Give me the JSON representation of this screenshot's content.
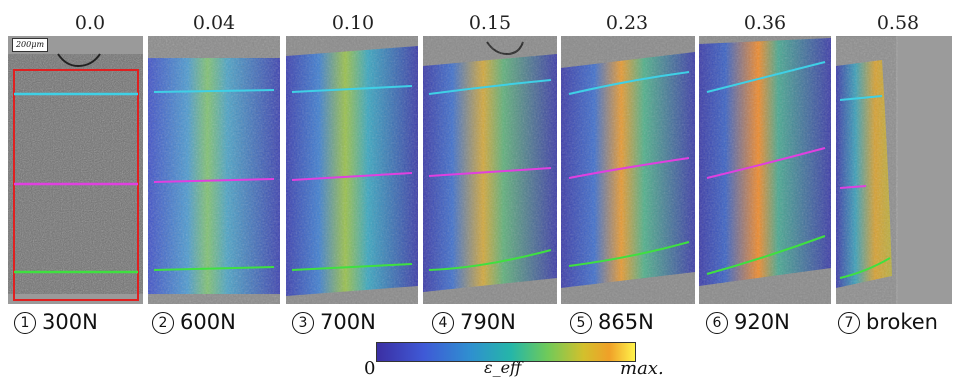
{
  "scale_bar": {
    "text": "200μm"
  },
  "panels": [
    {
      "strain": "0.0",
      "number": "1",
      "load": "300N"
    },
    {
      "strain": "0.04",
      "number": "2",
      "load": "600N"
    },
    {
      "strain": "0.10",
      "number": "3",
      "load": "700N"
    },
    {
      "strain": "0.15",
      "number": "4",
      "load": "790N"
    },
    {
      "strain": "0.23",
      "number": "5",
      "load": "865N"
    },
    {
      "strain": "0.36",
      "number": "6",
      "load": "920N"
    },
    {
      "strain": "0.58",
      "number": "7",
      "load": "broken"
    }
  ],
  "colorbar": {
    "min": "0",
    "label": "ε_eff",
    "max": "max."
  },
  "colors": {
    "line_top": "#3fd0e6",
    "line_middle": "#e040e0",
    "line_bottom": "#3fe040",
    "roi_box": "#e02020",
    "background_gray": "#9a9a9a"
  }
}
